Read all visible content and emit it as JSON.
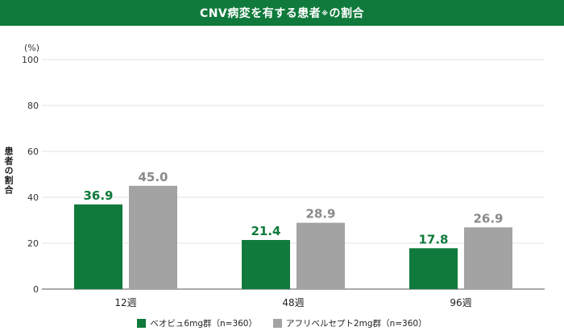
{
  "title": {
    "main": "CNV病変を有する患者",
    "mark": "※",
    "suffix": "の割合"
  },
  "colors": {
    "title_bg": "#0f7a3b",
    "series1": "#0f7a3b",
    "series2": "#a3a3a3",
    "label1": "#0f7a3b",
    "label2": "#8a8a8a"
  },
  "chart_data": {
    "type": "bar",
    "categories": [
      "12週",
      "48週",
      "96週"
    ],
    "series": [
      {
        "name": "ベオビュ6mg群（n=360）",
        "values": [
          36.9,
          21.4,
          17.8
        ],
        "labels": [
          "36.9",
          "21.4",
          "17.8"
        ]
      },
      {
        "name": "アフリベルセプト2mg群（n=360）",
        "values": [
          45.0,
          28.9,
          26.9
        ],
        "labels": [
          "45.0",
          "28.9",
          "26.9"
        ]
      }
    ],
    "ylabel": "患者の割合",
    "yunit": "(%)",
    "ylim": [
      0,
      100
    ],
    "yticks": [
      "0",
      "20",
      "40",
      "60",
      "80",
      "100"
    ],
    "grid": true,
    "legend": "bottom"
  }
}
